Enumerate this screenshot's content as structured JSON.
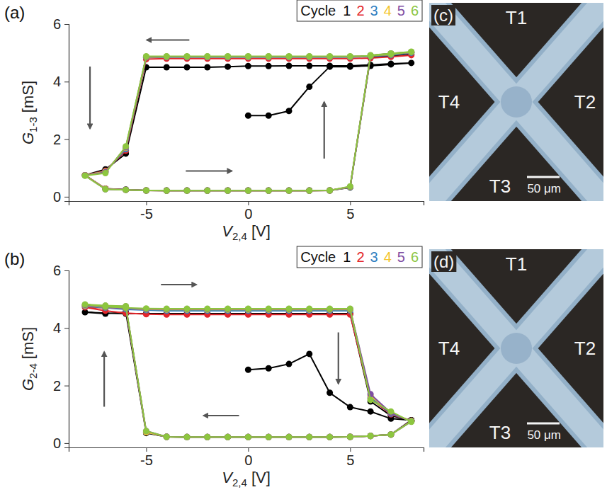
{
  "chart_data": [
    {
      "type": "line",
      "panel": "(a)",
      "x_label": "V2,4 [V]",
      "y_label": "G1-3 [mS]",
      "xlim": [
        -8.8,
        8.6
      ],
      "ylim": [
        -0.15,
        6
      ],
      "xticks": [
        -5,
        0,
        5
      ],
      "yticks": [
        0,
        2,
        4,
        6
      ],
      "legend": "top-right",
      "legend_title": "Cycle",
      "marker": "circle",
      "line_style": "solid",
      "series": [
        {
          "name": "1",
          "color": "#000000",
          "x": [
            0,
            1,
            2,
            3,
            4,
            5,
            6,
            7,
            8,
            7,
            6,
            5,
            4,
            3,
            2,
            1,
            0,
            -1,
            -2,
            -3,
            -4,
            -5,
            -6,
            -7,
            -8,
            -7,
            -6,
            -5,
            -4,
            -3,
            -2,
            -1,
            0,
            1,
            2,
            3,
            4,
            5,
            6,
            7,
            8
          ],
          "values": [
            2.82,
            2.82,
            2.98,
            3.82,
            4.52,
            4.52,
            4.55,
            4.6,
            4.65,
            4.62,
            4.58,
            4.55,
            4.55,
            4.55,
            4.55,
            4.54,
            4.54,
            4.52,
            4.5,
            4.5,
            4.5,
            4.5,
            1.5,
            0.95,
            0.75,
            0.28,
            0.25,
            0.22,
            0.22,
            0.22,
            0.22,
            0.22,
            0.22,
            0.22,
            0.22,
            0.22,
            0.22,
            0.32,
            4.85,
            4.9,
            4.95
          ]
        },
        {
          "name": "2",
          "color": "#e3262b",
          "x": [
            8,
            7,
            6,
            5,
            4,
            3,
            2,
            1,
            0,
            -1,
            -2,
            -3,
            -4,
            -5,
            -6,
            -7,
            -8,
            -7,
            -6,
            -5,
            -4,
            -3,
            -2,
            -1,
            0,
            1,
            2,
            3,
            4,
            5,
            6,
            7,
            8
          ],
          "values": [
            4.92,
            4.86,
            4.82,
            4.8,
            4.8,
            4.8,
            4.8,
            4.8,
            4.8,
            4.8,
            4.8,
            4.8,
            4.8,
            4.78,
            1.6,
            0.9,
            0.75,
            0.28,
            0.24,
            0.22,
            0.21,
            0.21,
            0.21,
            0.21,
            0.21,
            0.21,
            0.21,
            0.21,
            0.22,
            0.34,
            4.88,
            4.95,
            5.0
          ]
        },
        {
          "name": "3",
          "color": "#2f7fc1",
          "x": [
            8,
            7,
            6,
            5,
            4,
            3,
            2,
            1,
            0,
            -1,
            -2,
            -3,
            -4,
            -5,
            -6,
            -7,
            -8,
            -7,
            -6,
            -5,
            -4,
            -3,
            -2,
            -1,
            0,
            1,
            2,
            3,
            4,
            5,
            6,
            7,
            8
          ],
          "values": [
            5.0,
            4.92,
            4.88,
            4.85,
            4.85,
            4.85,
            4.85,
            4.85,
            4.85,
            4.85,
            4.85,
            4.85,
            4.85,
            4.84,
            1.65,
            0.88,
            0.75,
            0.27,
            0.24,
            0.22,
            0.21,
            0.21,
            0.21,
            0.21,
            0.21,
            0.21,
            0.21,
            0.21,
            0.22,
            0.33,
            4.9,
            4.97,
            5.02
          ]
        },
        {
          "name": "4",
          "color": "#f4c430",
          "x": [
            8,
            7,
            6,
            5,
            4,
            3,
            2,
            1,
            0,
            -1,
            -2,
            -3,
            -4,
            -5,
            -6,
            -7,
            -8,
            -7,
            -6,
            -5,
            -4,
            -3,
            -2,
            -1,
            0,
            1,
            2,
            3,
            4,
            5,
            6,
            7,
            8
          ],
          "values": [
            5.02,
            4.94,
            4.9,
            4.86,
            4.86,
            4.86,
            4.86,
            4.86,
            4.86,
            4.86,
            4.86,
            4.86,
            4.86,
            4.85,
            1.7,
            0.87,
            0.75,
            0.27,
            0.24,
            0.22,
            0.21,
            0.21,
            0.21,
            0.21,
            0.21,
            0.21,
            0.21,
            0.21,
            0.22,
            0.34,
            4.9,
            4.98,
            5.03
          ]
        },
        {
          "name": "5",
          "color": "#7e4ea3",
          "x": [
            8,
            7,
            6,
            5,
            4,
            3,
            2,
            1,
            0,
            -1,
            -2,
            -3,
            -4,
            -5,
            -6,
            -7,
            -8,
            -7,
            -6,
            -5,
            -4,
            -3,
            -2,
            -1,
            0,
            1,
            2,
            3,
            4,
            5,
            6,
            7,
            8
          ],
          "values": [
            5.02,
            4.94,
            4.9,
            4.87,
            4.87,
            4.87,
            4.87,
            4.87,
            4.87,
            4.87,
            4.87,
            4.87,
            4.87,
            4.86,
            1.72,
            0.85,
            0.74,
            0.26,
            0.24,
            0.22,
            0.21,
            0.21,
            0.21,
            0.21,
            0.21,
            0.21,
            0.21,
            0.21,
            0.22,
            0.35,
            4.91,
            4.98,
            5.03
          ]
        },
        {
          "name": "6",
          "color": "#8dc63f",
          "x": [
            8,
            7,
            6,
            5,
            4,
            3,
            2,
            1,
            0,
            -1,
            -2,
            -3,
            -4,
            -5,
            -6,
            -7,
            -8,
            -7,
            -6,
            -5,
            -4,
            -3,
            -2,
            -1,
            0,
            1,
            2,
            3,
            4,
            5,
            6,
            7,
            8
          ],
          "values": [
            5.03,
            4.95,
            4.9,
            4.88,
            4.88,
            4.88,
            4.88,
            4.88,
            4.88,
            4.88,
            4.88,
            4.88,
            4.88,
            4.88,
            1.75,
            0.82,
            0.73,
            0.26,
            0.24,
            0.22,
            0.21,
            0.21,
            0.21,
            0.21,
            0.21,
            0.21,
            0.21,
            0.21,
            0.22,
            0.36,
            4.92,
            4.98,
            5.04
          ]
        }
      ]
    },
    {
      "type": "line",
      "panel": "(b)",
      "x_label": "V2,4 [V]",
      "y_label": "G2-4 [mS]",
      "xlim": [
        -8.8,
        8.6
      ],
      "ylim": [
        -0.15,
        6
      ],
      "xticks": [
        -5,
        0,
        5
      ],
      "yticks": [
        0,
        2,
        4,
        6
      ],
      "legend": "top-right",
      "legend_title": "Cycle",
      "marker": "circle",
      "line_style": "solid",
      "series": [
        {
          "name": "1",
          "color": "#000000",
          "x": [
            0,
            1,
            2,
            3,
            4,
            5,
            6,
            7,
            8,
            7,
            6,
            5,
            4,
            3,
            2,
            1,
            0,
            -1,
            -2,
            -3,
            -4,
            -5,
            -6,
            -7,
            -8,
            -7,
            -6,
            -5,
            -4,
            -3,
            -2,
            -1,
            0,
            1,
            2,
            3,
            4,
            5,
            6,
            7,
            8
          ],
          "values": [
            2.55,
            2.6,
            2.75,
            3.1,
            1.75,
            1.25,
            1.1,
            0.85,
            0.8,
            0.3,
            0.25,
            0.22,
            0.21,
            0.21,
            0.21,
            0.21,
            0.21,
            0.21,
            0.21,
            0.21,
            0.22,
            0.35,
            4.55,
            4.5,
            4.55,
            4.52,
            4.5,
            4.5,
            4.5,
            4.5,
            4.5,
            4.5,
            4.5,
            4.5,
            4.5,
            4.5,
            4.5,
            4.5,
            1.45,
            0.95,
            0.8
          ]
        },
        {
          "name": "2",
          "color": "#e3262b",
          "x": [
            8,
            7,
            6,
            5,
            4,
            3,
            2,
            1,
            0,
            -1,
            -2,
            -3,
            -4,
            -5,
            -6,
            -7,
            -8,
            -7,
            -6,
            -5,
            -4,
            -3,
            -2,
            -1,
            0,
            1,
            2,
            3,
            4,
            5,
            6,
            7,
            8
          ],
          "values": [
            0.78,
            0.3,
            0.25,
            0.22,
            0.21,
            0.21,
            0.21,
            0.21,
            0.21,
            0.21,
            0.21,
            0.21,
            0.22,
            0.4,
            4.68,
            4.7,
            4.72,
            4.6,
            4.52,
            4.48,
            4.47,
            4.47,
            4.47,
            4.47,
            4.47,
            4.47,
            4.47,
            4.47,
            4.47,
            4.47,
            1.55,
            1.0,
            0.78
          ]
        },
        {
          "name": "3",
          "color": "#2f7fc1",
          "x": [
            8,
            7,
            6,
            5,
            4,
            3,
            2,
            1,
            0,
            -1,
            -2,
            -3,
            -4,
            -5,
            -6,
            -7,
            -8,
            -7,
            -6,
            -5,
            -4,
            -3,
            -2,
            -1,
            0,
            1,
            2,
            3,
            4,
            5,
            6,
            7,
            8
          ],
          "values": [
            0.77,
            0.3,
            0.25,
            0.22,
            0.21,
            0.21,
            0.21,
            0.21,
            0.21,
            0.21,
            0.21,
            0.21,
            0.22,
            0.38,
            4.72,
            4.74,
            4.76,
            4.7,
            4.65,
            4.62,
            4.6,
            4.6,
            4.6,
            4.6,
            4.6,
            4.6,
            4.6,
            4.6,
            4.6,
            4.6,
            1.6,
            1.02,
            0.77
          ]
        },
        {
          "name": "4",
          "color": "#f4c430",
          "x": [
            8,
            7,
            6,
            5,
            4,
            3,
            2,
            1,
            0,
            -1,
            -2,
            -3,
            -4,
            -5,
            -6,
            -7,
            -8,
            -7,
            -6,
            -5,
            -4,
            -3,
            -2,
            -1,
            0,
            1,
            2,
            3,
            4,
            5,
            6,
            7,
            8
          ],
          "values": [
            0.76,
            0.3,
            0.25,
            0.22,
            0.21,
            0.21,
            0.21,
            0.21,
            0.21,
            0.21,
            0.21,
            0.21,
            0.22,
            0.38,
            4.74,
            4.76,
            4.78,
            4.72,
            4.68,
            4.65,
            4.64,
            4.64,
            4.64,
            4.64,
            4.64,
            4.64,
            4.64,
            4.64,
            4.64,
            4.64,
            1.65,
            1.05,
            0.76
          ]
        },
        {
          "name": "5",
          "color": "#7e4ea3",
          "x": [
            8,
            7,
            6,
            5,
            4,
            3,
            2,
            1,
            0,
            -1,
            -2,
            -3,
            -4,
            -5,
            -6,
            -7,
            -8,
            -7,
            -6,
            -5,
            -4,
            -3,
            -2,
            -1,
            0,
            1,
            2,
            3,
            4,
            5,
            6,
            7,
            8
          ],
          "values": [
            0.75,
            0.3,
            0.25,
            0.22,
            0.21,
            0.21,
            0.21,
            0.21,
            0.21,
            0.21,
            0.21,
            0.21,
            0.22,
            0.42,
            4.75,
            4.77,
            4.8,
            4.72,
            4.68,
            4.66,
            4.66,
            4.66,
            4.66,
            4.66,
            4.66,
            4.66,
            4.66,
            4.66,
            4.66,
            4.66,
            1.7,
            1.05,
            0.75
          ]
        },
        {
          "name": "6",
          "color": "#8dc63f",
          "x": [
            8,
            7,
            6,
            5,
            4,
            3,
            2,
            1,
            0,
            -1,
            -2,
            -3,
            -4,
            -5,
            -6,
            -7,
            -8,
            -7,
            -6,
            -5,
            -4,
            -3,
            -2,
            -1,
            0,
            1,
            2,
            3,
            4,
            5,
            6,
            7,
            8
          ],
          "values": [
            0.75,
            0.3,
            0.25,
            0.22,
            0.21,
            0.21,
            0.21,
            0.21,
            0.21,
            0.21,
            0.21,
            0.21,
            0.22,
            0.42,
            4.76,
            4.78,
            4.82,
            4.74,
            4.7,
            4.68,
            4.67,
            4.67,
            4.67,
            4.67,
            4.67,
            4.67,
            4.67,
            4.67,
            4.67,
            4.67,
            1.5,
            1.1,
            0.74
          ]
        }
      ]
    }
  ],
  "photos": [
    {
      "panel": "(c)",
      "terminals": [
        "T1",
        "T2",
        "T3",
        "T4"
      ],
      "scale_bar": "50 μm"
    },
    {
      "panel": "(d)",
      "terminals": [
        "T1",
        "T2",
        "T3",
        "T4"
      ],
      "scale_bar": "50 μm"
    }
  ]
}
